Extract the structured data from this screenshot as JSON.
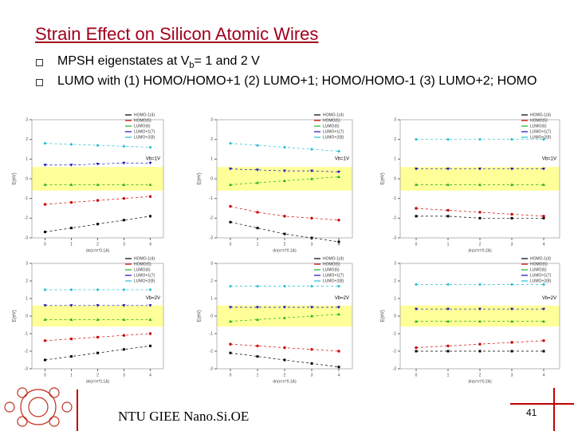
{
  "title": "Strain Effect on Silicon Atomic Wires",
  "bullets": [
    {
      "parts": [
        "MPSH eigenstates at V",
        "b",
        "= 1 and 2 V"
      ]
    },
    {
      "parts": [
        "LUMO with (1) HOMO/HOMO+1 (2) LUMO+1; HOMO/HOMO-1 (3) LUMO+2; HOMO"
      ]
    }
  ],
  "footer": "NTU GIEE Nano.Si.OE",
  "page_number": "41",
  "chart_data": [
    {
      "type": "line",
      "annotation": "Vb=1V",
      "xlabel": "dn(x=n*0.1A)",
      "ylabel": "E(eV)",
      "x": [
        0,
        1,
        2,
        3,
        4
      ],
      "xlim": [
        -0.5,
        4.5
      ],
      "xticks": [
        0,
        1,
        2,
        3,
        4
      ],
      "ylim": [
        -3,
        3
      ],
      "yticks": [
        -3,
        -2,
        -1,
        0,
        1,
        2,
        3
      ],
      "series": [
        {
          "name": "HOMO-1(4)",
          "color": "#000000",
          "values": [
            -2.7,
            -2.5,
            -2.3,
            -2.1,
            -1.9
          ]
        },
        {
          "name": "HOMO(5)",
          "color": "#d00000",
          "values": [
            -1.3,
            -1.2,
            -1.1,
            -1.0,
            -0.9
          ]
        },
        {
          "name": "LUMO(6)",
          "color": "#20b020",
          "values": [
            -0.3,
            -0.3,
            -0.3,
            -0.3,
            -0.3
          ]
        },
        {
          "name": "LUMO+1(7)",
          "color": "#1010c0",
          "values": [
            0.7,
            0.7,
            0.75,
            0.8,
            0.8
          ]
        },
        {
          "name": "LUMO+2(8)",
          "color": "#20c0d0",
          "values": [
            1.8,
            1.75,
            1.7,
            1.65,
            1.6
          ]
        }
      ]
    },
    {
      "type": "line",
      "annotation": "Vb=1V",
      "xlabel": "dn(x=n*0.1A)",
      "ylabel": "E(eV)",
      "x": [
        0,
        1,
        2,
        3,
        4
      ],
      "xlim": [
        -0.5,
        4.5
      ],
      "xticks": [
        0,
        1,
        2,
        3,
        4
      ],
      "ylim": [
        -3,
        3
      ],
      "yticks": [
        -3,
        -2,
        -1,
        0,
        1,
        2,
        3
      ],
      "series": [
        {
          "name": "HOMO-1(4)",
          "color": "#000000",
          "values": [
            -2.2,
            -2.5,
            -2.8,
            -3.0,
            -3.2
          ]
        },
        {
          "name": "HOMO(5)",
          "color": "#d00000",
          "values": [
            -1.4,
            -1.7,
            -1.9,
            -2.0,
            -2.1
          ]
        },
        {
          "name": "LUMO(6)",
          "color": "#20b020",
          "values": [
            -0.3,
            -0.2,
            -0.1,
            0.0,
            0.1
          ]
        },
        {
          "name": "LUMO+1(7)",
          "color": "#1010c0",
          "values": [
            0.5,
            0.45,
            0.4,
            0.4,
            0.35
          ]
        },
        {
          "name": "LUMO+2(8)",
          "color": "#20c0d0",
          "values": [
            1.8,
            1.7,
            1.6,
            1.5,
            1.4
          ]
        }
      ]
    },
    {
      "type": "line",
      "annotation": "Vb=1V",
      "xlabel": "dn(x=n*0.2A)",
      "ylabel": "E(eV)",
      "x": [
        0,
        1,
        2,
        3,
        4
      ],
      "xlim": [
        -0.5,
        4.5
      ],
      "xticks": [
        0,
        1,
        2,
        3,
        4
      ],
      "ylim": [
        -3,
        3
      ],
      "yticks": [
        -3,
        -2,
        -1,
        0,
        1,
        2,
        3
      ],
      "series": [
        {
          "name": "HOMO-1(4)",
          "color": "#000000",
          "values": [
            -1.9,
            -1.9,
            -2.0,
            -2.0,
            -2.0
          ]
        },
        {
          "name": "HOMO(5)",
          "color": "#d00000",
          "values": [
            -1.5,
            -1.6,
            -1.7,
            -1.8,
            -1.9
          ]
        },
        {
          "name": "LUMO(6)",
          "color": "#20b020",
          "values": [
            -0.3,
            -0.3,
            -0.3,
            -0.3,
            -0.3
          ]
        },
        {
          "name": "LUMO+1(7)",
          "color": "#1010c0",
          "values": [
            0.5,
            0.5,
            0.5,
            0.5,
            0.5
          ]
        },
        {
          "name": "LUMO+2(8)",
          "color": "#20c0d0",
          "values": [
            2.0,
            2.0,
            2.0,
            2.0,
            2.0
          ]
        }
      ]
    },
    {
      "type": "line",
      "annotation": "Vb=2V",
      "xlabel": "dn(x=n*0.1A)",
      "ylabel": "E(eV)",
      "x": [
        0,
        1,
        2,
        3,
        4
      ],
      "xlim": [
        -0.5,
        4.5
      ],
      "xticks": [
        0,
        1,
        2,
        3,
        4
      ],
      "ylim": [
        -3,
        3
      ],
      "yticks": [
        -3,
        -2,
        -1,
        0,
        1,
        2,
        3
      ],
      "series": [
        {
          "name": "HOMO-1(4)",
          "color": "#000000",
          "values": [
            -2.5,
            -2.3,
            -2.1,
            -1.9,
            -1.7
          ]
        },
        {
          "name": "HOMO(5)",
          "color": "#d00000",
          "values": [
            -1.4,
            -1.3,
            -1.2,
            -1.1,
            -1.0
          ]
        },
        {
          "name": "LUMO(6)",
          "color": "#20b020",
          "values": [
            -0.2,
            -0.2,
            -0.2,
            -0.2,
            -0.2
          ]
        },
        {
          "name": "LUMO+1(7)",
          "color": "#1010c0",
          "values": [
            0.6,
            0.6,
            0.6,
            0.6,
            0.6
          ]
        },
        {
          "name": "LUMO+2(8)",
          "color": "#20c0d0",
          "values": [
            1.5,
            1.5,
            1.5,
            1.5,
            1.5
          ]
        }
      ]
    },
    {
      "type": "line",
      "annotation": "Vb=2V",
      "xlabel": "dn(x=n*0.1A)",
      "ylabel": "E(eV)",
      "x": [
        0,
        1,
        2,
        3,
        4
      ],
      "xlim": [
        -0.5,
        4.5
      ],
      "xticks": [
        0,
        1,
        2,
        3,
        4
      ],
      "ylim": [
        -3,
        3
      ],
      "yticks": [
        -3,
        -2,
        -1,
        0,
        1,
        2,
        3
      ],
      "series": [
        {
          "name": "HOMO-1(4)",
          "color": "#000000",
          "values": [
            -2.1,
            -2.3,
            -2.5,
            -2.7,
            -2.9
          ]
        },
        {
          "name": "HOMO(5)",
          "color": "#d00000",
          "values": [
            -1.6,
            -1.7,
            -1.8,
            -1.9,
            -2.0
          ]
        },
        {
          "name": "LUMO(6)",
          "color": "#20b020",
          "values": [
            -0.3,
            -0.2,
            -0.1,
            0.0,
            0.1
          ]
        },
        {
          "name": "LUMO+1(7)",
          "color": "#1010c0",
          "values": [
            0.5,
            0.5,
            0.5,
            0.5,
            0.5
          ]
        },
        {
          "name": "LUMO+2(8)",
          "color": "#20c0d0",
          "values": [
            1.7,
            1.7,
            1.7,
            1.7,
            1.7
          ]
        }
      ]
    },
    {
      "type": "line",
      "annotation": "Vb=2V",
      "xlabel": "dn(x=n*0.2A)",
      "ylabel": "E(eV)",
      "x": [
        0,
        1,
        2,
        3,
        4
      ],
      "xlim": [
        -0.5,
        4.5
      ],
      "xticks": [
        0,
        1,
        2,
        3,
        4
      ],
      "ylim": [
        -3,
        3
      ],
      "yticks": [
        -3,
        -2,
        -1,
        0,
        1,
        2,
        3
      ],
      "series": [
        {
          "name": "HOMO-1(4)",
          "color": "#000000",
          "values": [
            -2.0,
            -2.0,
            -2.0,
            -2.0,
            -2.0
          ]
        },
        {
          "name": "HOMO(5)",
          "color": "#d00000",
          "values": [
            -1.8,
            -1.7,
            -1.6,
            -1.5,
            -1.4
          ]
        },
        {
          "name": "LUMO(6)",
          "color": "#20b020",
          "values": [
            -0.3,
            -0.3,
            -0.3,
            -0.3,
            -0.3
          ]
        },
        {
          "name": "LUMO+1(7)",
          "color": "#1010c0",
          "values": [
            0.4,
            0.4,
            0.4,
            0.4,
            0.4
          ]
        },
        {
          "name": "LUMO+2(8)",
          "color": "#20c0d0",
          "values": [
            1.8,
            1.8,
            1.8,
            1.8,
            1.8
          ]
        }
      ]
    }
  ]
}
